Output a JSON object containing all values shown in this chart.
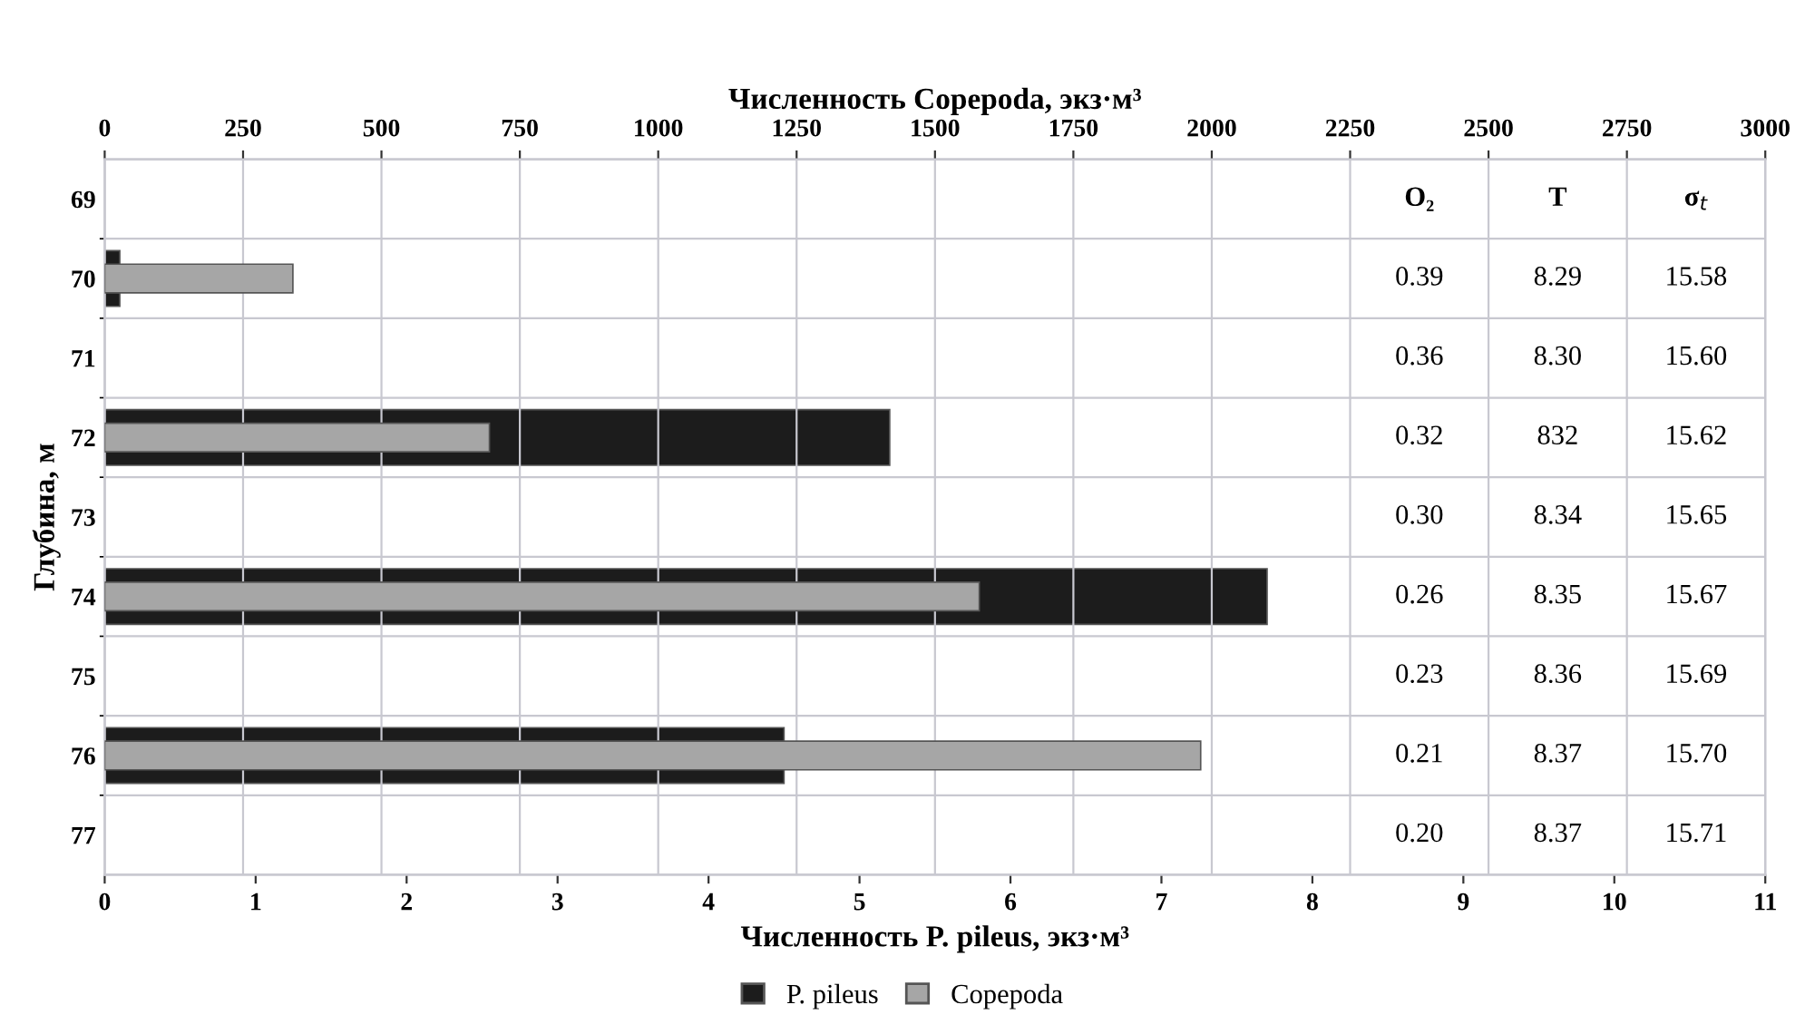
{
  "chart_data": {
    "type": "bar",
    "orientation": "horizontal",
    "xlabel": "Численность P. pileus, экз·м³",
    "x2label": "Численность Copepoda, экз·м³",
    "ylabel": "Глубина, м",
    "categories": [
      "69",
      "70",
      "71",
      "72",
      "73",
      "74",
      "75",
      "76",
      "77"
    ],
    "series": [
      {
        "name": "P. pileus",
        "color": "#1c1c1c",
        "values": [
          null,
          0.1,
          null,
          5.2,
          null,
          7.7,
          null,
          4.5,
          null
        ]
      },
      {
        "name": "Copepoda",
        "color": "#a6a6a6",
        "axis": "x2",
        "values": [
          null,
          340,
          null,
          695,
          null,
          1580,
          null,
          1980,
          null
        ]
      }
    ],
    "xlim": [
      0,
      11
    ],
    "xticks": [
      0,
      1,
      2,
      3,
      4,
      5,
      6,
      7,
      8,
      9,
      10,
      11
    ],
    "x2lim": [
      0,
      3000
    ],
    "x2ticks": [
      0,
      250,
      500,
      750,
      1000,
      1250,
      1500,
      1750,
      2000,
      2250,
      2500,
      2750,
      3000
    ],
    "grid": true,
    "legend": "bottom",
    "annotations": [
      "O₂",
      "T",
      "σ$_{t}$",
      "0.39",
      "8.29",
      "15.58",
      "0.36",
      "8.30",
      "15.60",
      "0.32",
      "832",
      "15.62",
      "0.30",
      "8.34",
      "15.65",
      "0.26",
      "8.35",
      "15.67",
      "0.23",
      "8.36",
      "15.69",
      "0.21",
      "8.37",
      "15.70",
      "0.20",
      "8.37",
      "15.71"
    ]
  }
}
